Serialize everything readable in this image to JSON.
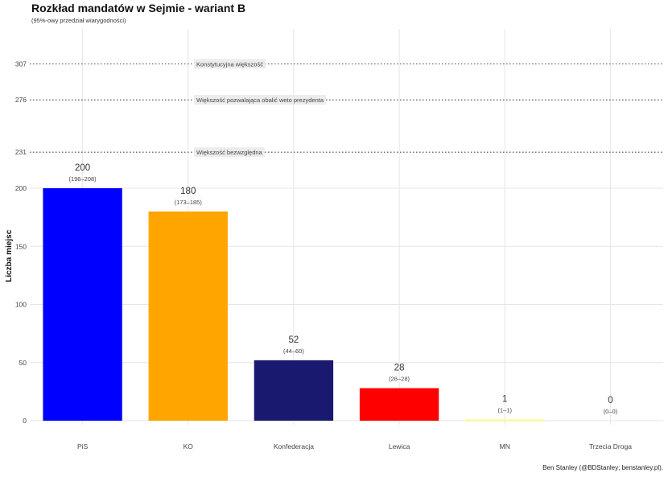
{
  "chart_data": {
    "type": "bar",
    "title": "Rozkład mandatów w Sejmie - wariant B",
    "subtitle": "(95%-owy przedział wiarygodności)",
    "ylabel": "Liczba miejsc",
    "xlabel": "",
    "caption": "Ben Stanley (@BDStanley; benstanley.pl).",
    "categories": [
      "PiS",
      "KO",
      "Konfederacja",
      "Lewica",
      "MN",
      "Trzecia Droga"
    ],
    "values": [
      200,
      180,
      52,
      28,
      1,
      0
    ],
    "intervals": [
      "(196–208)",
      "(173–185)",
      "(44–60)",
      "(26–28)",
      "(1–1)",
      "(0–0)"
    ],
    "colors": [
      "#0000ff",
      "#ffa500",
      "#191970",
      "#ff0000",
      "#ffff66",
      "#cccccc"
    ],
    "yticks": [
      0,
      50,
      100,
      150,
      200,
      231,
      276,
      307
    ],
    "ylim": [
      0,
      307
    ],
    "grid": true,
    "reference_lines": [
      {
        "value": 307,
        "label": "Konstytucyjna większość"
      },
      {
        "value": 276,
        "label": "Większość pozwalająca obalić weto prezydenta"
      },
      {
        "value": 231,
        "label": "Większość bezwzględna"
      }
    ]
  }
}
